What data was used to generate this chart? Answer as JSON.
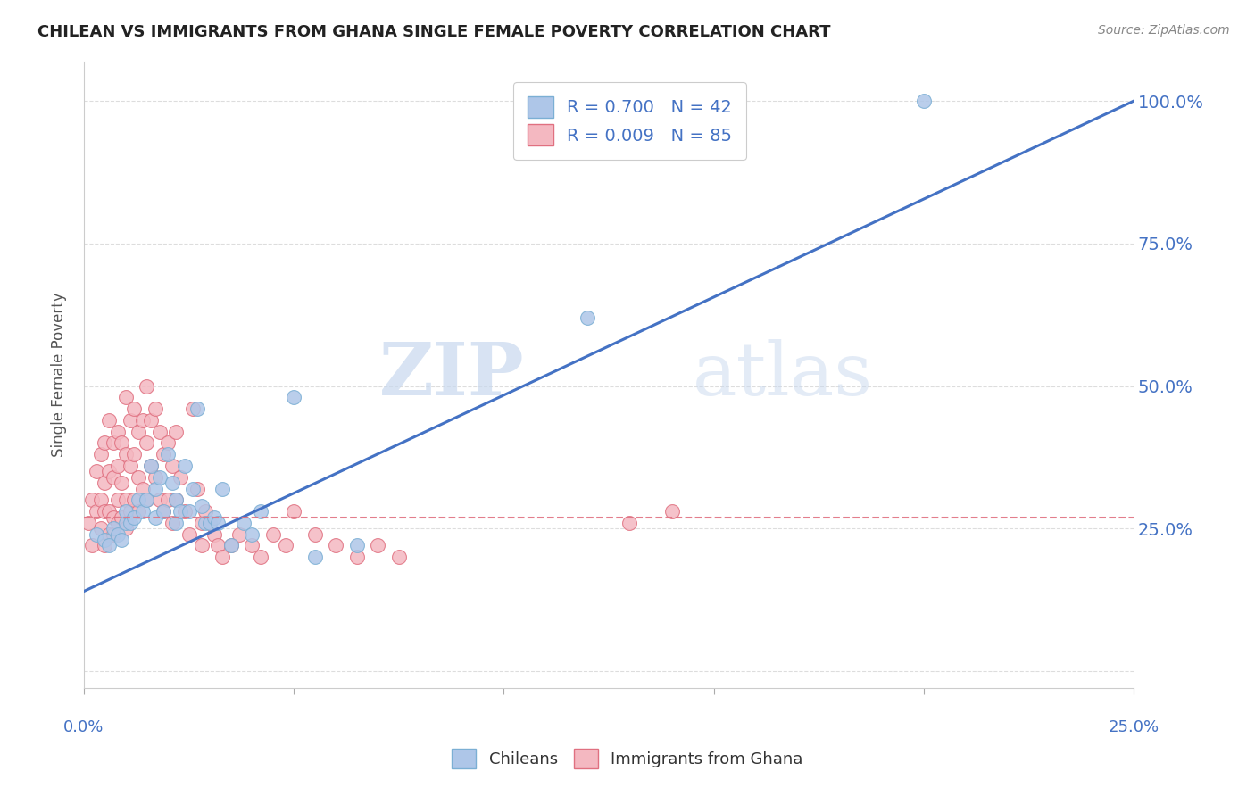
{
  "title": "CHILEAN VS IMMIGRANTS FROM GHANA SINGLE FEMALE POVERTY CORRELATION CHART",
  "source": "Source: ZipAtlas.com",
  "ylabel": "Single Female Poverty",
  "xmin": 0.0,
  "xmax": 0.25,
  "ymin": -0.03,
  "ymax": 1.07,
  "yticks": [
    0.0,
    0.25,
    0.5,
    0.75,
    1.0
  ],
  "ytick_labels": [
    "",
    "25.0%",
    "50.0%",
    "75.0%",
    "100.0%"
  ],
  "legend_r1": "R = 0.700   N = 42",
  "legend_r2": "R = 0.009   N = 85",
  "chilean_color": "#aec6e8",
  "chilean_edge": "#7bafd4",
  "ghana_color": "#f4b8c1",
  "ghana_edge": "#e07080",
  "trendline_blue": "#4472c4",
  "trendline_pink": "#e07080",
  "watermark_zip": "ZIP",
  "watermark_atlas": "atlas",
  "chilean_scatter_x": [
    0.003,
    0.005,
    0.006,
    0.007,
    0.008,
    0.009,
    0.01,
    0.01,
    0.011,
    0.012,
    0.013,
    0.014,
    0.015,
    0.016,
    0.017,
    0.017,
    0.018,
    0.019,
    0.02,
    0.021,
    0.022,
    0.022,
    0.023,
    0.024,
    0.025,
    0.026,
    0.027,
    0.028,
    0.029,
    0.03,
    0.031,
    0.032,
    0.033,
    0.035,
    0.038,
    0.04,
    0.042,
    0.05,
    0.055,
    0.065,
    0.12,
    0.2
  ],
  "chilean_scatter_y": [
    0.24,
    0.23,
    0.22,
    0.25,
    0.24,
    0.23,
    0.26,
    0.28,
    0.26,
    0.27,
    0.3,
    0.28,
    0.3,
    0.36,
    0.32,
    0.27,
    0.34,
    0.28,
    0.38,
    0.33,
    0.26,
    0.3,
    0.28,
    0.36,
    0.28,
    0.32,
    0.46,
    0.29,
    0.26,
    0.26,
    0.27,
    0.26,
    0.32,
    0.22,
    0.26,
    0.24,
    0.28,
    0.48,
    0.2,
    0.22,
    0.62,
    1.0
  ],
  "ghana_scatter_x": [
    0.001,
    0.002,
    0.002,
    0.003,
    0.003,
    0.004,
    0.004,
    0.004,
    0.005,
    0.005,
    0.005,
    0.005,
    0.006,
    0.006,
    0.006,
    0.006,
    0.007,
    0.007,
    0.007,
    0.007,
    0.008,
    0.008,
    0.008,
    0.008,
    0.009,
    0.009,
    0.009,
    0.01,
    0.01,
    0.01,
    0.01,
    0.011,
    0.011,
    0.011,
    0.012,
    0.012,
    0.012,
    0.013,
    0.013,
    0.013,
    0.014,
    0.014,
    0.015,
    0.015,
    0.015,
    0.016,
    0.016,
    0.017,
    0.017,
    0.018,
    0.018,
    0.019,
    0.019,
    0.02,
    0.02,
    0.021,
    0.021,
    0.022,
    0.022,
    0.023,
    0.024,
    0.025,
    0.026,
    0.027,
    0.028,
    0.028,
    0.029,
    0.03,
    0.031,
    0.032,
    0.033,
    0.035,
    0.037,
    0.04,
    0.042,
    0.045,
    0.048,
    0.05,
    0.055,
    0.06,
    0.065,
    0.07,
    0.075,
    0.13,
    0.14
  ],
  "ghana_scatter_y": [
    0.26,
    0.3,
    0.22,
    0.35,
    0.28,
    0.38,
    0.3,
    0.25,
    0.4,
    0.33,
    0.28,
    0.22,
    0.44,
    0.35,
    0.28,
    0.24,
    0.4,
    0.34,
    0.27,
    0.24,
    0.42,
    0.36,
    0.3,
    0.26,
    0.4,
    0.33,
    0.27,
    0.48,
    0.38,
    0.3,
    0.25,
    0.44,
    0.36,
    0.28,
    0.46,
    0.38,
    0.3,
    0.42,
    0.34,
    0.28,
    0.44,
    0.32,
    0.5,
    0.4,
    0.3,
    0.44,
    0.36,
    0.46,
    0.34,
    0.42,
    0.3,
    0.38,
    0.28,
    0.4,
    0.3,
    0.36,
    0.26,
    0.42,
    0.3,
    0.34,
    0.28,
    0.24,
    0.46,
    0.32,
    0.26,
    0.22,
    0.28,
    0.26,
    0.24,
    0.22,
    0.2,
    0.22,
    0.24,
    0.22,
    0.2,
    0.24,
    0.22,
    0.28,
    0.24,
    0.22,
    0.2,
    0.22,
    0.2,
    0.26,
    0.28
  ]
}
